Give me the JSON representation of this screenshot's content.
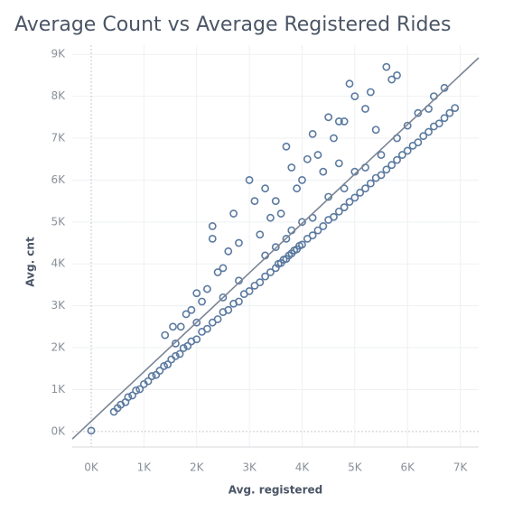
{
  "chart_data": {
    "type": "scatter",
    "title": "Average Count vs Average Registered Rides",
    "x_label": "Avg. registered",
    "y_label": "Avg. cnt",
    "color": "#5b7aa0",
    "trend_color": "#7b8595",
    "grid": true,
    "xlim": [
      -360,
      7350
    ],
    "ylim": [
      -370,
      9220
    ],
    "xticks": [
      {
        "value": 0,
        "label": "0K"
      },
      {
        "value": 1000,
        "label": "1K"
      },
      {
        "value": 2000,
        "label": "2K"
      },
      {
        "value": 3000,
        "label": "3K"
      },
      {
        "value": 4000,
        "label": "4K"
      },
      {
        "value": 5000,
        "label": "5K"
      },
      {
        "value": 6000,
        "label": "6K"
      },
      {
        "value": 7000,
        "label": "7K"
      }
    ],
    "yticks": [
      {
        "value": 0,
        "label": "0K"
      },
      {
        "value": 1000,
        "label": "1K"
      },
      {
        "value": 2000,
        "label": "2K"
      },
      {
        "value": 3000,
        "label": "3K"
      },
      {
        "value": 4000,
        "label": "4K"
      },
      {
        "value": 5000,
        "label": "5K"
      },
      {
        "value": 6000,
        "label": "6K"
      },
      {
        "value": 7000,
        "label": "7K"
      },
      {
        "value": 8000,
        "label": "8K"
      },
      {
        "value": 9000,
        "label": "9K"
      }
    ],
    "trend_line": {
      "x": [
        -360,
        7350
      ],
      "y": [
        -180,
        8918
      ]
    },
    "x": [
      0,
      430,
      500,
      560,
      650,
      700,
      780,
      850,
      920,
      1000,
      1080,
      1150,
      1230,
      1300,
      1380,
      1450,
      1520,
      1600,
      1680,
      1750,
      1830,
      1900,
      2000,
      2100,
      2200,
      2300,
      2400,
      2500,
      2600,
      2700,
      2800,
      2900,
      3000,
      3100,
      3200,
      3300,
      3400,
      3500,
      3550,
      3600,
      3650,
      3700,
      3750,
      3800,
      3850,
      3900,
      3950,
      4000,
      4100,
      4200,
      4300,
      4400,
      4500,
      4600,
      4700,
      4800,
      4900,
      5000,
      5100,
      5200,
      5300,
      5400,
      5500,
      5600,
      5700,
      5800,
      5900,
      6000,
      6100,
      6200,
      6300,
      6400,
      6500,
      6600,
      6700,
      6800,
      6900,
      3300,
      3500,
      3700,
      3800,
      4000,
      4200,
      4500,
      4800,
      5000,
      5200,
      5500,
      5800,
      6000,
      6200,
      6400,
      6500,
      6700,
      2800,
      2500,
      2000,
      1600,
      1400,
      1550,
      1700,
      1800,
      1900,
      2000,
      2100,
      2200,
      2300,
      2300,
      2400,
      2500,
      2600,
      2700,
      2800,
      3000,
      3100,
      3200,
      3300,
      3400,
      3500,
      3600,
      3700,
      3800,
      3900,
      4000,
      4100,
      4200,
      4300,
      4400,
      4500,
      4600,
      4700,
      4800,
      4900,
      5000,
      5200,
      5300,
      5600,
      5700,
      5800,
      5400,
      4700
    ],
    "y": [
      20,
      470,
      560,
      640,
      700,
      820,
      860,
      980,
      1010,
      1130,
      1200,
      1320,
      1350,
      1450,
      1560,
      1600,
      1720,
      1800,
      1850,
      1990,
      2040,
      2150,
      2200,
      2380,
      2450,
      2600,
      2680,
      2850,
      2900,
      3050,
      3100,
      3280,
      3350,
      3480,
      3560,
      3700,
      3800,
      3900,
      4000,
      4020,
      4100,
      4120,
      4200,
      4250,
      4320,
      4350,
      4430,
      4460,
      4600,
      4680,
      4800,
      4900,
      5050,
      5120,
      5250,
      5350,
      5480,
      5580,
      5700,
      5800,
      5920,
      6050,
      6120,
      6250,
      6360,
      6480,
      6600,
      6700,
      6820,
      6900,
      7050,
      7150,
      7280,
      7350,
      7480,
      7600,
      7720,
      4200,
      4400,
      4600,
      4800,
      5000,
      5100,
      5600,
      5800,
      6200,
      6300,
      6600,
      7000,
      7300,
      7600,
      7700,
      8000,
      8200,
      3600,
      3200,
      2600,
      2100,
      2300,
      2500,
      2500,
      2800,
      2900,
      3300,
      3100,
      3400,
      4900,
      4600,
      3800,
      3900,
      4300,
      5200,
      4500,
      6000,
      5500,
      4700,
      5800,
      5100,
      5500,
      5200,
      6800,
      6300,
      5800,
      6000,
      6500,
      7100,
      6600,
      6200,
      7500,
      7000,
      7400,
      7400,
      8300,
      8000,
      7700,
      8100,
      8700,
      8400,
      8500,
      7200,
      6400
    ]
  }
}
